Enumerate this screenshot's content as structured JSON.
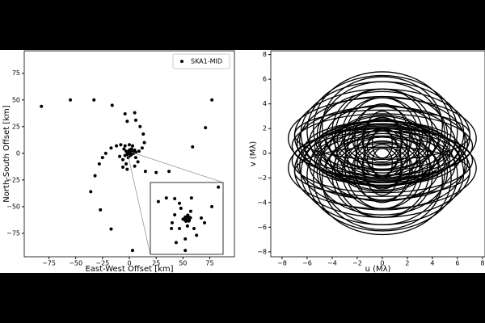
{
  "chart_data": [
    {
      "type": "scatter",
      "xlabel": "East-West Offset [km]",
      "ylabel": "North-South Offset [km]",
      "xlim": [
        -98,
        98
      ],
      "ylim": [
        -97,
        96
      ],
      "xticks": [
        {
          "value": -75,
          "label": "−75"
        },
        {
          "value": -50,
          "label": "−50"
        },
        {
          "value": -25,
          "label": "−25"
        },
        0,
        25,
        50,
        75
      ],
      "yticks": [
        {
          "value": -75,
          "label": "−75"
        },
        {
          "value": -50,
          "label": "−50"
        },
        {
          "value": -25,
          "label": "−25"
        },
        0,
        25,
        50,
        75
      ],
      "legend": "upper right",
      "series": [
        {
          "name": "SKA1-MID",
          "color": "#000000",
          "x": [
            -82,
            -55,
            -33,
            -16,
            77,
            71,
            59,
            3,
            -17,
            -27,
            -36,
            -32,
            37,
            25,
            15,
            5,
            -4,
            -2,
            6,
            10,
            13,
            14,
            12,
            9,
            6,
            -8,
            -12,
            -17,
            -22,
            -25,
            -28,
            -3,
            -6,
            -2,
            5,
            0,
            1,
            -1,
            2,
            -2,
            1,
            3,
            -3,
            4,
            -4,
            0,
            2,
            -1,
            5,
            -5,
            0,
            -4,
            3,
            6,
            -6,
            8,
            -9
          ],
          "values": [
            44,
            50,
            50,
            45,
            50,
            24,
            6,
            -91,
            -71,
            -53,
            -36,
            -21,
            -17,
            -18,
            -17,
            38,
            37,
            30,
            31,
            25,
            18,
            10,
            5,
            2,
            1,
            8,
            7,
            5,
            0,
            -4,
            -10,
            -10,
            -13,
            -15,
            -12,
            0,
            1,
            0.5,
            -1,
            -1,
            -2,
            2,
            2,
            0,
            -2,
            3,
            4,
            -4,
            3,
            4,
            8,
            7,
            7,
            -4,
            -6,
            -8,
            -3
          ]
        }
      ],
      "inset": {
        "xlim": [
          -1,
          1
        ],
        "ylim": [
          -1,
          1
        ],
        "x": [
          -0.56,
          -0.33,
          -0.2,
          0.13,
          0.87,
          0.69,
          0.4,
          0.49,
          -0.33,
          -0.4,
          -0.42,
          -0.04,
          -0.29,
          0.27,
          0.2,
          0.02,
          -0.2,
          0.11,
          -0.16,
          -0.04,
          -0.78,
          0,
          0.04,
          -0.04,
          0.07,
          -0.07,
          0.03,
          -0.02,
          0.1,
          -0.1,
          0.06
        ],
        "values": [
          0.57,
          0.55,
          0.42,
          0.57,
          0.87,
          0.33,
          0.01,
          -0.12,
          0.1,
          -0.12,
          -0.28,
          -0.57,
          -0.67,
          -0.47,
          -0.28,
          -0.21,
          -0.28,
          0.2,
          0.28,
          -0.89,
          0.47,
          0,
          0.05,
          0.04,
          -0.04,
          -0.03,
          0.09,
          -0.08,
          0.02,
          -0.02,
          -0.07
        ]
      }
    },
    {
      "type": "tracks",
      "xlabel": "u (Mλ)",
      "ylabel": "v (Mλ)",
      "xlim": [
        -8.9,
        8.2
      ],
      "ylim": [
        -8.4,
        8.3
      ],
      "xticks": [
        {
          "value": -8,
          "label": "−8"
        },
        {
          "value": -6,
          "label": "−6"
        },
        {
          "value": -4,
          "label": "−4"
        },
        {
          "value": -2,
          "label": "−2"
        },
        0,
        2,
        4,
        6,
        8
      ],
      "yticks": [
        {
          "value": -8,
          "label": "−8"
        },
        {
          "value": -6,
          "label": "−6"
        },
        {
          "value": -4,
          "label": "−4"
        },
        {
          "value": -2,
          "label": "−2"
        },
        0,
        2,
        4,
        6,
        8
      ],
      "color": "#000000",
      "tracks": [
        [
          7.5,
          3.3,
          1.2
        ],
        [
          7.0,
          3.8,
          1.4
        ],
        [
          6.5,
          4.2,
          1.6
        ],
        [
          6.8,
          3.0,
          0.8
        ],
        [
          6.0,
          4.5,
          1.8
        ],
        [
          5.5,
          4.6,
          2.0
        ],
        [
          7.2,
          2.6,
          0.6
        ],
        [
          6.2,
          2.2,
          0.4
        ],
        [
          5.2,
          3.5,
          1.5
        ],
        [
          4.8,
          4.0,
          2.2
        ],
        [
          5.8,
          2.8,
          1.0
        ],
        [
          4.5,
          2.6,
          1.3
        ],
        [
          4.0,
          3.4,
          1.8
        ],
        [
          3.6,
          2.0,
          1.1
        ],
        [
          3.2,
          2.9,
          1.6
        ],
        [
          2.8,
          1.6,
          0.8
        ],
        [
          2.4,
          2.4,
          1.4
        ],
        [
          2.0,
          1.2,
          0.7
        ],
        [
          1.6,
          1.8,
          1.1
        ],
        [
          1.2,
          0.9,
          0.5
        ],
        [
          0.8,
          1.2,
          0.8
        ],
        [
          6.6,
          3.6,
          1.0
        ],
        [
          5.0,
          4.4,
          1.4
        ],
        [
          3.8,
          4.0,
          1.2
        ],
        [
          4.2,
          1.8,
          0.5
        ],
        [
          5.4,
          2.0,
          0.6
        ],
        [
          3.0,
          3.6,
          0.9
        ],
        [
          2.2,
          3.0,
          1.0
        ],
        [
          1.5,
          2.6,
          0.8
        ],
        [
          7.0,
          2.0,
          1.5
        ]
      ]
    }
  ]
}
